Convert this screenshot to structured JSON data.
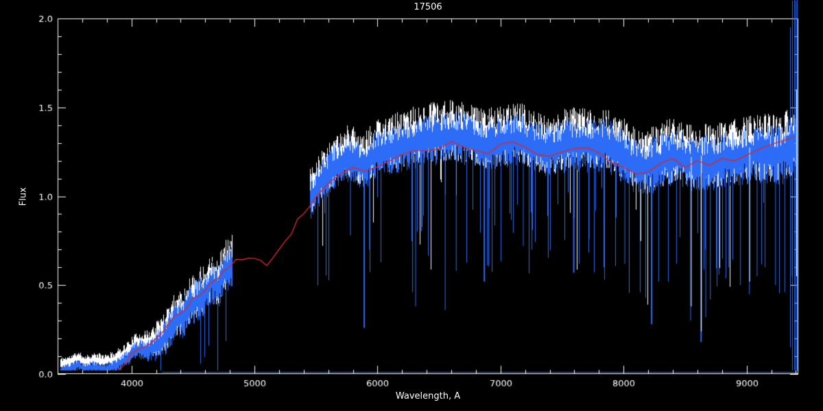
{
  "chart_data": {
    "type": "line",
    "title": "17506",
    "xlabel": "Wavelength, A",
    "ylabel": "Flux",
    "xlim": [
      3400,
      9420
    ],
    "ylim": [
      0.0,
      2.0
    ],
    "x_major_ticks": [
      4000,
      5000,
      6000,
      7000,
      8000,
      9000
    ],
    "x_tick_labels": [
      "4000",
      "5000",
      "6000",
      "7000",
      "8000",
      "9000"
    ],
    "x_minor_step": 200,
    "y_major_ticks": [
      0.0,
      0.5,
      1.0,
      1.5,
      2.0
    ],
    "y_tick_labels": [
      "0.0",
      "0.5",
      "1.0",
      "1.5",
      "2.0"
    ],
    "y_minor_step": 0.1,
    "background": "#000000",
    "axis_color": "#ffffff",
    "colors": {
      "white": "#ffffff",
      "blue": "#2d6cf6",
      "red": "#d42a2a"
    },
    "noise": {
      "x": [
        3420,
        3850,
        4100,
        4300,
        4820,
        5450,
        5700,
        6500,
        7500,
        8200,
        8800,
        9200,
        9410
      ],
      "y": [
        0.03,
        0.04,
        0.06,
        0.115,
        0.125,
        0.12,
        0.13,
        0.15,
        0.15,
        0.16,
        0.16,
        0.17,
        0.18
      ]
    },
    "series": [
      {
        "name": "observed-spectrum-white",
        "kind": "band",
        "color": "#ffffff",
        "seed": 11,
        "amp_scale": 1.15,
        "offset": 0.02,
        "spike_prob": 0.02,
        "spike_min_wl": 5450,
        "segments": [
          [
            3420,
            4820
          ],
          [
            5450,
            9410
          ]
        ],
        "continuum": {
          "x": [
            3420,
            3500,
            3560,
            3620,
            3700,
            3780,
            3850,
            3900,
            3950,
            4000,
            4060,
            4120,
            4180,
            4240,
            4300,
            4360,
            4420,
            4480,
            4540,
            4600,
            4650,
            4700,
            4750,
            4800,
            4820,
            5450,
            5500,
            5560,
            5620,
            5700,
            5780,
            5850,
            5900,
            5960,
            6050,
            6150,
            6250,
            6350,
            6450,
            6550,
            6650,
            6750,
            6850,
            6950,
            7050,
            7150,
            7250,
            7350,
            7450,
            7550,
            7650,
            7750,
            7850,
            7950,
            8050,
            8150,
            8250,
            8350,
            8450,
            8550,
            8650,
            8750,
            8850,
            8950,
            9050,
            9150,
            9250,
            9350,
            9410
          ],
          "y": [
            0.04,
            0.05,
            0.07,
            0.05,
            0.06,
            0.05,
            0.06,
            0.08,
            0.1,
            0.13,
            0.16,
            0.15,
            0.17,
            0.2,
            0.26,
            0.32,
            0.34,
            0.4,
            0.44,
            0.47,
            0.54,
            0.5,
            0.58,
            0.63,
            0.63,
            1.0,
            1.06,
            1.12,
            1.16,
            1.21,
            1.24,
            1.2,
            1.19,
            1.24,
            1.27,
            1.29,
            1.31,
            1.33,
            1.34,
            1.35,
            1.35,
            1.33,
            1.31,
            1.31,
            1.33,
            1.34,
            1.3,
            1.28,
            1.28,
            1.31,
            1.31,
            1.3,
            1.31,
            1.27,
            1.21,
            1.18,
            1.2,
            1.23,
            1.24,
            1.2,
            1.21,
            1.21,
            1.23,
            1.24,
            1.26,
            1.26,
            1.25,
            1.28,
            1.33
          ]
        }
      },
      {
        "name": "observed-spectrum-blue",
        "kind": "band",
        "color": "#2d6cf6",
        "seed": 23,
        "amp_scale": 1.0,
        "offset": -0.02,
        "spike_prob": 0.05,
        "spike_min_wl": 4200,
        "segments": [
          [
            3420,
            4820
          ],
          [
            5450,
            9410
          ]
        ],
        "continuum_ref": "observed-spectrum-white"
      },
      {
        "name": "model-spectrum-red",
        "kind": "line",
        "color": "#d42a2a",
        "x": [
          3900,
          3950,
          4000,
          4050,
          4100,
          4150,
          4200,
          4250,
          4300,
          4350,
          4400,
          4450,
          4500,
          4550,
          4600,
          4650,
          4700,
          4750,
          4800,
          4850,
          4900,
          4950,
          5000,
          5050,
          5100,
          5150,
          5200,
          5250,
          5300,
          5350,
          5400,
          5450,
          5500,
          5600,
          5700,
          5800,
          5900,
          6000,
          6100,
          6200,
          6300,
          6400,
          6500,
          6600,
          6700,
          6800,
          6900,
          7000,
          7100,
          7200,
          7300,
          7400,
          7500,
          7600,
          7700,
          7800,
          7900,
          8000,
          8100,
          8200,
          8300,
          8400,
          8500,
          8600,
          8700,
          8800,
          8900,
          9000,
          9100,
          9200,
          9300,
          9410
        ],
        "y": [
          0.04,
          0.07,
          0.1,
          0.13,
          0.15,
          0.17,
          0.2,
          0.24,
          0.28,
          0.32,
          0.35,
          0.38,
          0.42,
          0.44,
          0.48,
          0.52,
          0.54,
          0.58,
          0.61,
          0.63,
          0.65,
          0.64,
          0.66,
          0.65,
          0.62,
          0.66,
          0.7,
          0.74,
          0.8,
          0.86,
          0.9,
          0.94,
          0.99,
          1.06,
          1.12,
          1.15,
          1.13,
          1.18,
          1.21,
          1.24,
          1.26,
          1.27,
          1.28,
          1.3,
          1.28,
          1.26,
          1.24,
          1.28,
          1.3,
          1.27,
          1.24,
          1.23,
          1.26,
          1.28,
          1.26,
          1.25,
          1.2,
          1.16,
          1.13,
          1.15,
          1.18,
          1.2,
          1.16,
          1.19,
          1.17,
          1.2,
          1.21,
          1.23,
          1.26,
          1.28,
          1.3,
          1.33
        ]
      },
      {
        "name": "sky-baseline",
        "kind": "hline",
        "color": "#2d6cf6",
        "y": 0.012,
        "x0": 4250,
        "x1": 9410
      }
    ],
    "absorption_spikes": [
      {
        "x": 5780,
        "depth": 0.78
      },
      {
        "x": 5892,
        "depth": 0.26,
        "w": 2
      },
      {
        "x": 5935,
        "depth": 0.7
      },
      {
        "x": 6285,
        "depth": 0.46
      },
      {
        "x": 6310,
        "depth": 0.38
      },
      {
        "x": 6550,
        "depth": 0.36
      },
      {
        "x": 6640,
        "depth": 0.58
      },
      {
        "x": 6868,
        "depth": 0.52,
        "w": 2
      },
      {
        "x": 6905,
        "depth": 0.62
      },
      {
        "x": 7185,
        "depth": 0.72
      },
      {
        "x": 7255,
        "depth": 0.7
      },
      {
        "x": 7595,
        "depth": 0.57,
        "w": 2
      },
      {
        "x": 7640,
        "depth": 0.62
      },
      {
        "x": 7720,
        "depth": 0.76
      },
      {
        "x": 8010,
        "depth": 0.62
      },
      {
        "x": 8135,
        "depth": 0.46
      },
      {
        "x": 8228,
        "depth": 0.28,
        "w": 2
      },
      {
        "x": 8285,
        "depth": 0.52
      },
      {
        "x": 8430,
        "depth": 0.62
      },
      {
        "x": 8545,
        "depth": 0.3
      },
      {
        "x": 8630,
        "depth": 0.18,
        "w": 2
      },
      {
        "x": 8668,
        "depth": 0.32
      },
      {
        "x": 8705,
        "depth": 0.42
      },
      {
        "x": 8775,
        "depth": 0.56
      },
      {
        "x": 8855,
        "depth": 0.6
      },
      {
        "x": 8950,
        "depth": 0.5
      },
      {
        "x": 9022,
        "depth": 0.45
      },
      {
        "x": 9085,
        "depth": 0.55
      },
      {
        "x": 9150,
        "depth": 0.6
      },
      {
        "x": 9235,
        "depth": 0.5
      },
      {
        "x": 9310,
        "depth": 0.46
      },
      {
        "x": 9370,
        "depth": 0.55
      },
      {
        "x": 8550,
        "depth": 0.38,
        "series": "white"
      },
      {
        "x": 8632,
        "depth": 0.24,
        "series": "white"
      },
      {
        "x": 9025,
        "depth": 0.52,
        "series": "white"
      }
    ],
    "edge_spikes": [
      {
        "x": 9355,
        "y0": 0.15,
        "y1": 1.95,
        "color": "#2d6cf6"
      },
      {
        "x": 9372,
        "y0": 0.02,
        "y1": 2.1,
        "color": "#2d6cf6"
      },
      {
        "x": 9387,
        "y0": 0.02,
        "y1": 2.12,
        "color": "#2d6cf6"
      },
      {
        "x": 9399,
        "y0": 0.02,
        "y1": 2.1,
        "color": "#2d6cf6"
      },
      {
        "x": 9409,
        "y0": 0.02,
        "y1": 2.12,
        "color": "#2d6cf6"
      },
      {
        "x": 9404,
        "y0": 0.55,
        "y1": 1.6,
        "color": "#ffffff"
      }
    ]
  }
}
